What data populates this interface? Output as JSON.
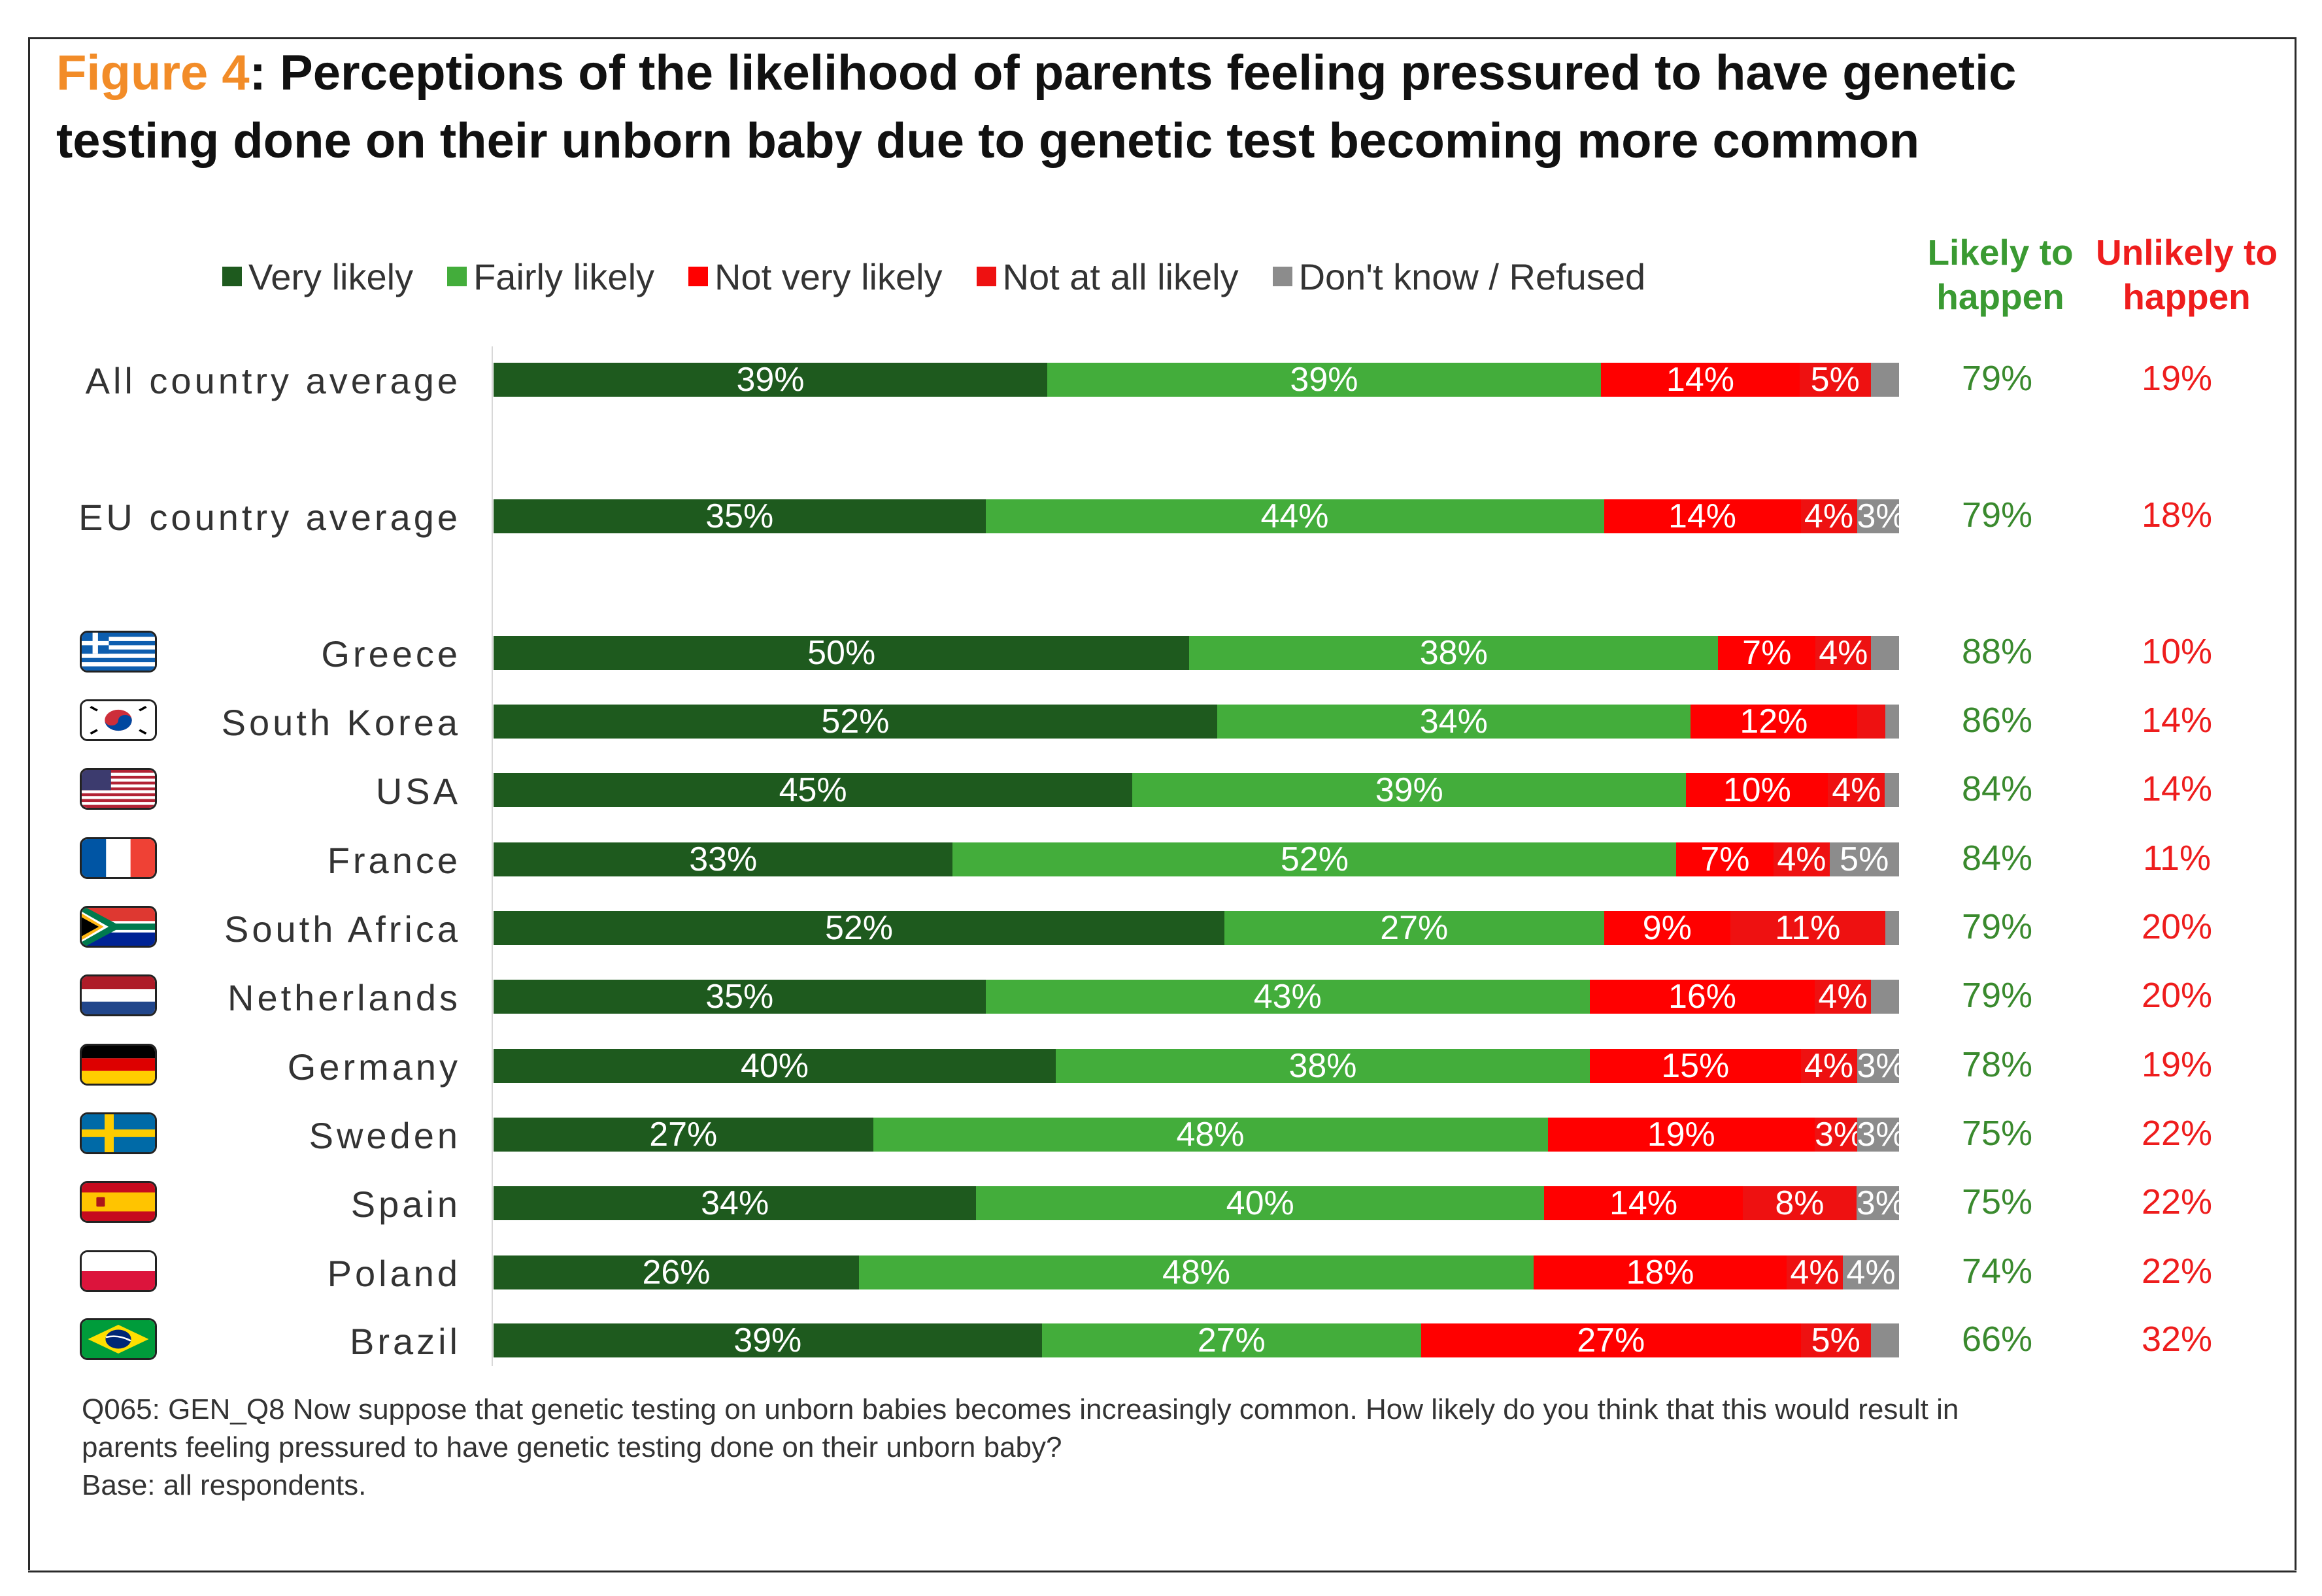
{
  "title": {
    "figure_label": "Figure 4",
    "line1_rest": ": Perceptions of the likelihood of parents feeling pressured to have genetic",
    "line2": "testing done on their unborn baby due to genetic test becoming more common"
  },
  "colors": {
    "very_likely": "#1e5a1e",
    "fairly_likely": "#43ad3b",
    "not_very_likely": "#ff0000",
    "not_at_all_likely": "#ee1111",
    "dont_know": "#8c8c8c",
    "likely_text": "#3a8a2e",
    "unlikely_text": "#ee1d1d"
  },
  "legend": [
    "Very likely",
    "Fairly likely",
    "Not very likely",
    "Not at all likely",
    "Don't know / Refused"
  ],
  "columns": {
    "likely_line1": "Likely to",
    "likely_line2": "happen",
    "unlikely_line1": "Unlikely to",
    "unlikely_line2": "happen"
  },
  "chart_data": {
    "type": "bar",
    "orientation": "horizontal",
    "stacked": true,
    "title": "Perceptions of the likelihood of parents feeling pressured to have genetic testing done on their unborn baby due to genetic test becoming more common",
    "categories": [
      "All country average",
      "EU country average",
      "Greece",
      "South Korea",
      "USA",
      "France",
      "South Africa",
      "Netherlands",
      "Germany",
      "Sweden",
      "Spain",
      "Poland",
      "Brazil"
    ],
    "flags": [
      "",
      "",
      "greece-flag",
      "south-korea-flag",
      "usa-flag",
      "france-flag",
      "south-africa-flag",
      "netherlands-flag",
      "germany-flag",
      "sweden-flag",
      "spain-flag",
      "poland-flag",
      "brazil-flag"
    ],
    "series": [
      {
        "name": "Very likely",
        "values": [
          39,
          35,
          50,
          52,
          45,
          33,
          52,
          35,
          40,
          27,
          34,
          26,
          39
        ]
      },
      {
        "name": "Fairly likely",
        "values": [
          39,
          44,
          38,
          34,
          39,
          52,
          27,
          43,
          38,
          48,
          40,
          48,
          27
        ]
      },
      {
        "name": "Not very likely",
        "values": [
          14,
          14,
          7,
          12,
          10,
          7,
          9,
          16,
          15,
          19,
          14,
          18,
          27
        ]
      },
      {
        "name": "Not at all likely",
        "values": [
          5,
          4,
          4,
          2,
          4,
          4,
          11,
          4,
          4,
          3,
          8,
          4,
          5
        ]
      },
      {
        "name": "Don't know / Refused",
        "values": [
          2,
          3,
          2,
          1,
          1,
          5,
          1,
          2,
          3,
          3,
          3,
          4,
          2
        ]
      }
    ],
    "labels": [
      [
        "39%",
        "39%",
        "14%",
        "5%",
        ""
      ],
      [
        "35%",
        "44%",
        "14%",
        "4%",
        "3%"
      ],
      [
        "50%",
        "38%",
        "7%",
        "4%",
        ""
      ],
      [
        "52%",
        "34%",
        "12%",
        "",
        ""
      ],
      [
        "45%",
        "39%",
        "10%",
        "4%",
        ""
      ],
      [
        "33%",
        "52%",
        "7%",
        "4%",
        "5%"
      ],
      [
        "52%",
        "27%",
        "9%",
        "11%",
        ""
      ],
      [
        "35%",
        "43%",
        "16%",
        "4%",
        ""
      ],
      [
        "40%",
        "38%",
        "15%",
        "4%",
        "3%"
      ],
      [
        "27%",
        "48%",
        "19%",
        "3%",
        "3%"
      ],
      [
        "34%",
        "40%",
        "14%",
        "8%",
        "3%"
      ],
      [
        "26%",
        "48%",
        "18%",
        "4%",
        "4%"
      ],
      [
        "39%",
        "27%",
        "27%",
        "5%",
        ""
      ]
    ],
    "likely_to_happen": [
      "79%",
      "79%",
      "88%",
      "86%",
      "84%",
      "84%",
      "79%",
      "79%",
      "78%",
      "75%",
      "75%",
      "74%",
      "66%"
    ],
    "unlikely_to_happen": [
      "19%",
      "18%",
      "10%",
      "14%",
      "14%",
      "11%",
      "20%",
      "20%",
      "19%",
      "22%",
      "22%",
      "22%",
      "32%"
    ],
    "xlim": [
      0,
      100
    ]
  },
  "footnote": {
    "line1": "Q065: GEN_Q8 Now suppose that genetic testing on unborn babies becomes increasingly common. How likely do you think that this would result in",
    "line2": "parents feeling pressured to have genetic testing done on their unborn baby?",
    "line3": "Base: all respondents."
  }
}
